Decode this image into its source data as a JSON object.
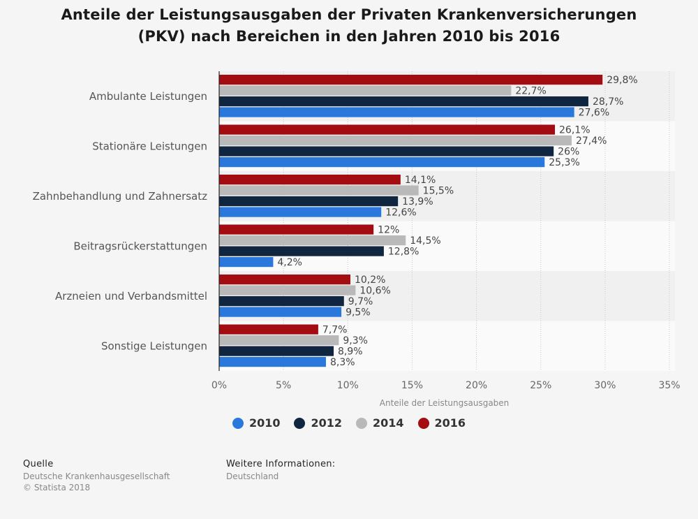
{
  "title_lines": [
    "Anteile der Leistungsausgaben der Privaten Krankenversicherungen",
    "(PKV) nach Bereichen in den Jahren 2010 bis 2016"
  ],
  "chart_data": {
    "type": "bar",
    "orientation": "horizontal",
    "title": "Anteile der Leistungsausgaben der Privaten Krankenversicherungen (PKV) nach Bereichen in den Jahren 2010 bis 2016",
    "xlabel": "Anteile der Leistungsausgaben",
    "ylabel": "",
    "xlim": [
      0,
      35
    ],
    "x_ticks": [
      "0%",
      "5%",
      "10%",
      "15%",
      "20%",
      "25%",
      "30%",
      "35%"
    ],
    "grid": true,
    "legend_position": "bottom",
    "categories": [
      "Ambulante Leistungen",
      "Stationäre Leistungen",
      "Zahnbehandlung und Zahnersatz",
      "Beitragsrückerstattungen",
      "Arzneien und Verbandsmittel",
      "Sonstige Leistungen"
    ],
    "series": [
      {
        "name": "2016",
        "color": "#a30d11",
        "values": [
          29.8,
          26.1,
          14.1,
          12,
          10.2,
          7.7
        ],
        "labels": [
          "29,8%",
          "26,1%",
          "14,1%",
          "12%",
          "10,2%",
          "7,7%"
        ]
      },
      {
        "name": "2014",
        "color": "#b9b9b9",
        "values": [
          22.7,
          27.4,
          15.5,
          14.5,
          10.6,
          9.3
        ],
        "labels": [
          "22,7%",
          "27,4%",
          "15,5%",
          "14,5%",
          "10,6%",
          "9,3%"
        ]
      },
      {
        "name": "2012",
        "color": "#0f2540",
        "values": [
          28.7,
          26,
          13.9,
          12.8,
          9.7,
          8.9
        ],
        "labels": [
          "28,7%",
          "26%",
          "13,9%",
          "12,8%",
          "9,7%",
          "8,9%"
        ]
      },
      {
        "name": "2010",
        "color": "#2a78db",
        "values": [
          27.6,
          25.3,
          12.6,
          4.2,
          9.5,
          8.3
        ],
        "labels": [
          "27,6%",
          "25,3%",
          "12,6%",
          "4,2%",
          "9,5%",
          "8,3%"
        ]
      }
    ]
  },
  "legend": [
    {
      "label": "2010",
      "color": "#2a78db"
    },
    {
      "label": "2012",
      "color": "#0f2540"
    },
    {
      "label": "2014",
      "color": "#b9b9b9"
    },
    {
      "label": "2016",
      "color": "#a30d11"
    }
  ],
  "footer": {
    "source_heading": "Quelle",
    "source_lines": [
      "Deutsche Krankenhausgesellschaft",
      "© Statista 2018"
    ],
    "info_heading": "Weitere Informationen:",
    "info_lines": [
      "Deutschland"
    ]
  }
}
